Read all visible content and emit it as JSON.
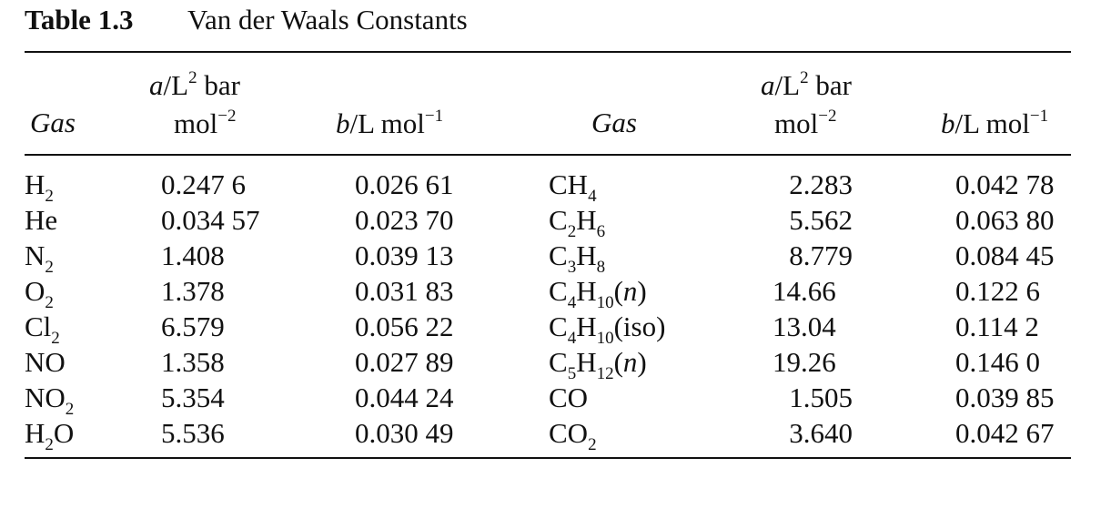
{
  "title": {
    "label": "Table 1.3",
    "text": "Van der Waals Constants"
  },
  "headers": {
    "gas": "Gas",
    "a_line1_italic": "a",
    "a_line1_rest": "/L",
    "a_line1_sup": "2",
    "a_line1_tail": " bar",
    "a_line2": "mol",
    "a_line2_sup": "−2",
    "b_italic": "b",
    "b_rest": "/L mol",
    "b_sup": "−1"
  },
  "left_rows": [
    {
      "gas": [
        {
          "t": "H"
        },
        {
          "sub": "2"
        }
      ],
      "a": "0.247 6",
      "b": "0.026 61"
    },
    {
      "gas": [
        {
          "t": "He"
        }
      ],
      "a": "0.034 57",
      "b": "0.023 70"
    },
    {
      "gas": [
        {
          "t": "N"
        },
        {
          "sub": "2"
        }
      ],
      "a": "1.408",
      "b": "0.039 13"
    },
    {
      "gas": [
        {
          "t": "O"
        },
        {
          "sub": "2"
        }
      ],
      "a": "1.378",
      "b": "0.031 83"
    },
    {
      "gas": [
        {
          "t": "Cl"
        },
        {
          "sub": "2"
        }
      ],
      "a": "6.579",
      "b": "0.056 22"
    },
    {
      "gas": [
        {
          "t": "NO"
        }
      ],
      "a": "1.358",
      "b": "0.027 89"
    },
    {
      "gas": [
        {
          "t": "NO"
        },
        {
          "sub": "2"
        }
      ],
      "a": "5.354",
      "b": "0.044 24"
    },
    {
      "gas": [
        {
          "t": "H"
        },
        {
          "sub": "2"
        },
        {
          "t": "O"
        }
      ],
      "a": "5.536",
      "b": "0.030 49"
    }
  ],
  "right_rows": [
    {
      "gas": [
        {
          "t": "CH"
        },
        {
          "sub": "4"
        }
      ],
      "a": "2.283",
      "b": "0.042 78"
    },
    {
      "gas": [
        {
          "t": "C"
        },
        {
          "sub": "2"
        },
        {
          "t": "H"
        },
        {
          "sub": "6"
        }
      ],
      "a": "5.562",
      "b": "0.063 80"
    },
    {
      "gas": [
        {
          "t": "C"
        },
        {
          "sub": "3"
        },
        {
          "t": "H"
        },
        {
          "sub": "8"
        }
      ],
      "a": "8.779",
      "b": "0.084 45"
    },
    {
      "gas": [
        {
          "t": "C"
        },
        {
          "sub": "4"
        },
        {
          "t": "H"
        },
        {
          "sub": "10"
        },
        {
          "t": "("
        },
        {
          "i": "n"
        },
        {
          "t": ")"
        }
      ],
      "a": "14.66",
      "b": "0.122 6"
    },
    {
      "gas": [
        {
          "t": "C"
        },
        {
          "sub": "4"
        },
        {
          "t": "H"
        },
        {
          "sub": "10"
        },
        {
          "t": "(iso)"
        }
      ],
      "a": "13.04",
      "b": "0.114 2"
    },
    {
      "gas": [
        {
          "t": "C"
        },
        {
          "sub": "5"
        },
        {
          "t": "H"
        },
        {
          "sub": "12"
        },
        {
          "t": "("
        },
        {
          "i": "n"
        },
        {
          "t": ")"
        }
      ],
      "a": "19.26",
      "b": "0.146 0"
    },
    {
      "gas": [
        {
          "t": "CO"
        }
      ],
      "a": "1.505",
      "b": "0.039 85"
    },
    {
      "gas": [
        {
          "t": "CO"
        },
        {
          "sub": "2"
        }
      ],
      "a": "3.640",
      "b": "0.042 67"
    }
  ]
}
